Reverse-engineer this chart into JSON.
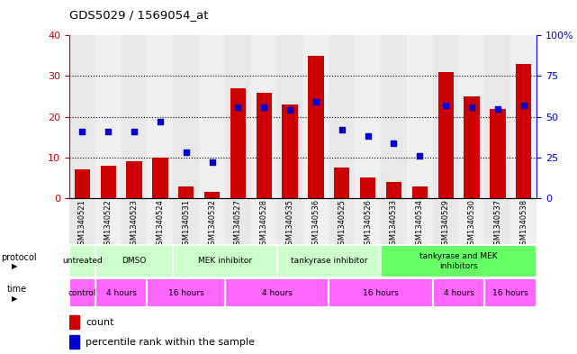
{
  "title": "GDS5029 / 1569054_at",
  "samples": [
    "GSM1340521",
    "GSM1340522",
    "GSM1340523",
    "GSM1340524",
    "GSM1340531",
    "GSM1340532",
    "GSM1340527",
    "GSM1340528",
    "GSM1340535",
    "GSM1340536",
    "GSM1340525",
    "GSM1340526",
    "GSM1340533",
    "GSM1340534",
    "GSM1340529",
    "GSM1340530",
    "GSM1340537",
    "GSM1340538"
  ],
  "counts": [
    7,
    8,
    9,
    10,
    3,
    1.5,
    27,
    26,
    23,
    35,
    7.5,
    5,
    4,
    3,
    31,
    25,
    22,
    33
  ],
  "percentiles": [
    41,
    41,
    41,
    47,
    28,
    22,
    56,
    56,
    54,
    59,
    42,
    38,
    34,
    26,
    57,
    56,
    55,
    57
  ],
  "bar_color": "#cc0000",
  "dot_color": "#0000cc",
  "ylim_left": [
    0,
    40
  ],
  "ylim_right": [
    0,
    100
  ],
  "yticks_left": [
    0,
    10,
    20,
    30,
    40
  ],
  "yticks_right": [
    0,
    25,
    50,
    75,
    100
  ],
  "ylabel_left_color": "#cc0000",
  "ylabel_right_color": "#0000cc",
  "protocols": [
    {
      "label": "untreated",
      "start": 0,
      "end": 1,
      "color": "#ccffcc"
    },
    {
      "label": "DMSO",
      "start": 1,
      "end": 4,
      "color": "#ccffcc"
    },
    {
      "label": "MEK inhibitor",
      "start": 4,
      "end": 8,
      "color": "#ccffcc"
    },
    {
      "label": "tankyrase inhibitor",
      "start": 8,
      "end": 12,
      "color": "#ccffcc"
    },
    {
      "label": "tankyrase and MEK\ninhibitors",
      "start": 12,
      "end": 18,
      "color": "#66ff66"
    }
  ],
  "times": [
    {
      "label": "control",
      "start": 0,
      "end": 1,
      "color": "#ff66ff"
    },
    {
      "label": "4 hours",
      "start": 1,
      "end": 3,
      "color": "#ff66ff"
    },
    {
      "label": "16 hours",
      "start": 3,
      "end": 6,
      "color": "#ff66ff"
    },
    {
      "label": "4 hours",
      "start": 6,
      "end": 10,
      "color": "#ff66ff"
    },
    {
      "label": "16 hours",
      "start": 10,
      "end": 14,
      "color": "#ff66ff"
    },
    {
      "label": "4 hours",
      "start": 14,
      "end": 16,
      "color": "#ff66ff"
    },
    {
      "label": "16 hours",
      "start": 16,
      "end": 18,
      "color": "#ff66ff"
    }
  ],
  "legend_count_label": "count",
  "legend_percentile_label": "percentile rank within the sample",
  "group_alternating": [
    0,
    1,
    0,
    1,
    0,
    1,
    0,
    1,
    0,
    1,
    0,
    1,
    0,
    1,
    0,
    1,
    0,
    1
  ],
  "group_colors": [
    "#e8e8e8",
    "#f0f0f0"
  ]
}
